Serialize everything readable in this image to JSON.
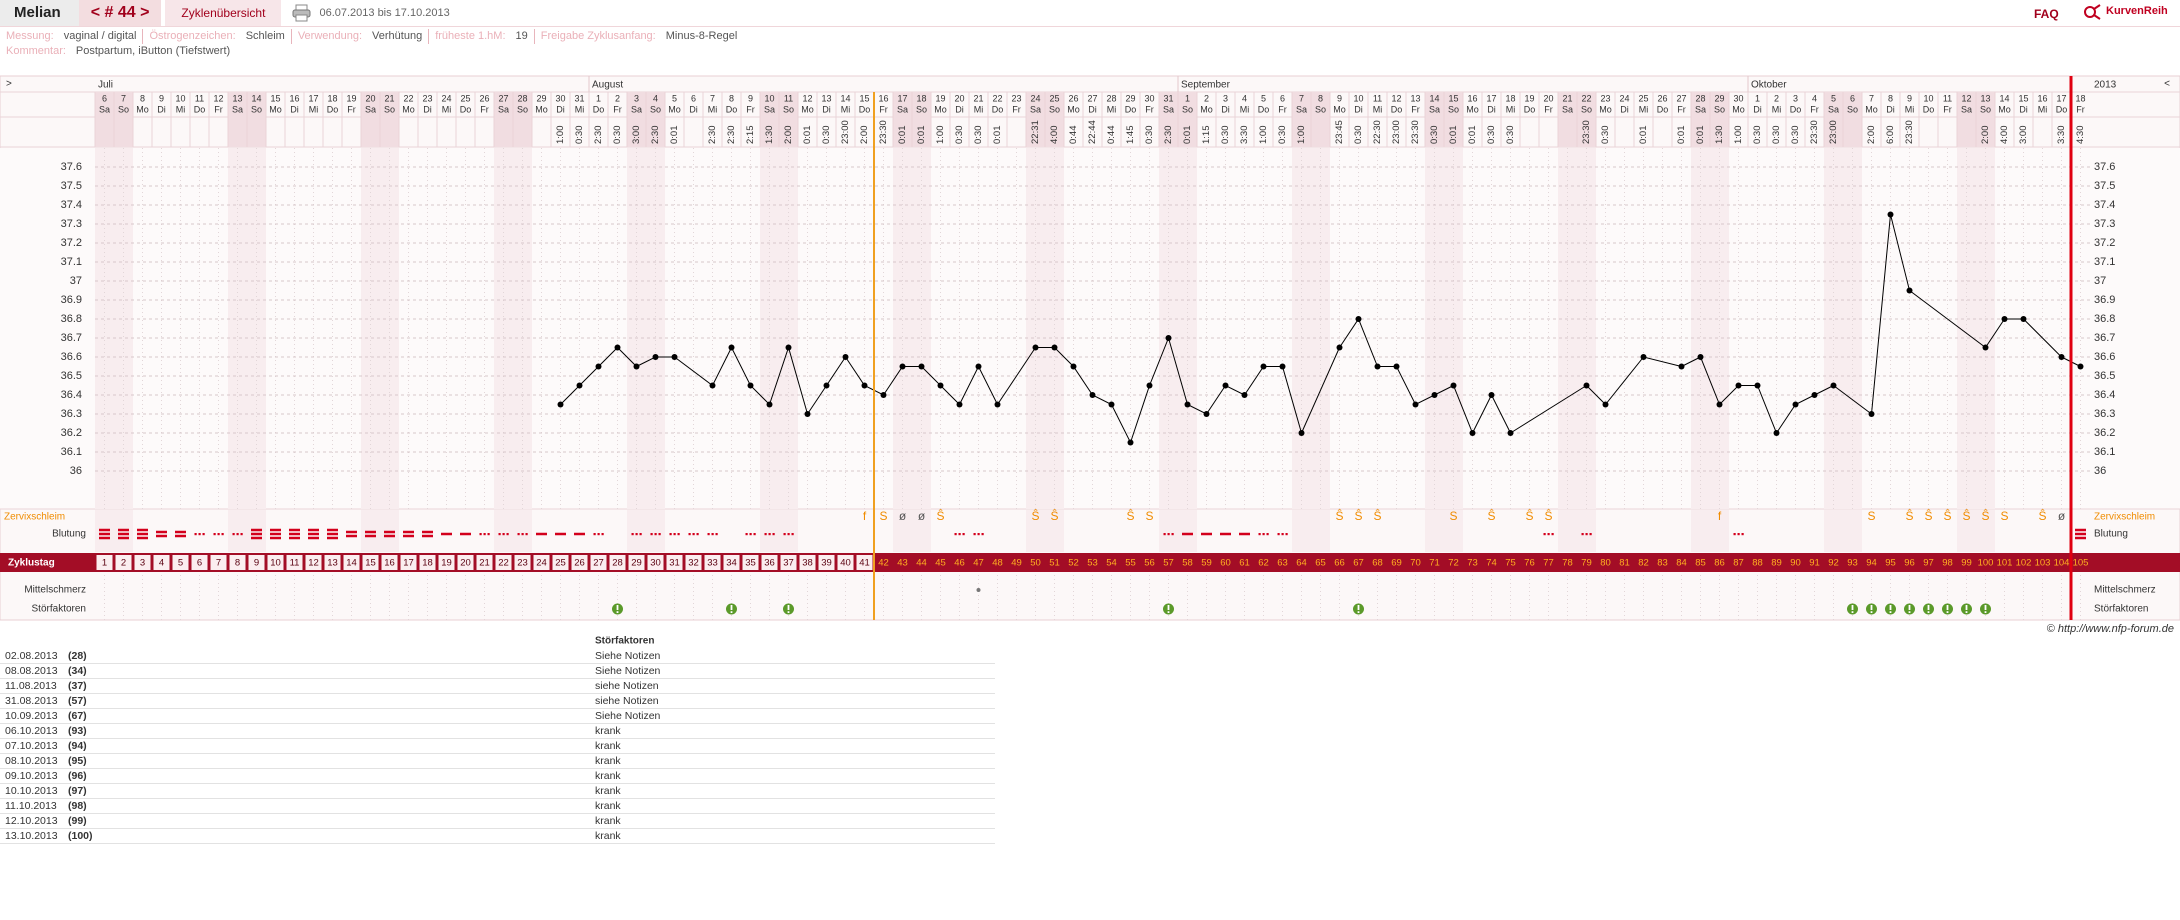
{
  "header": {
    "title": "Melian",
    "cycle_nav": "< # 44 >",
    "tab": "Zyklenübersicht",
    "date_range": "06.07.2013 bis 17.10.2013",
    "faq": "FAQ",
    "site": "KurvenReih"
  },
  "info": {
    "fields": [
      {
        "label": "Messung:",
        "value": "vaginal / digital"
      },
      {
        "label": "Östrogenzeichen:",
        "value": "Schleim"
      },
      {
        "label": "Verwendung:",
        "value": "Verhütung"
      },
      {
        "label": "früheste 1.hM:",
        "value": 19
      },
      {
        "label": "Freigabe Zyklusanfang:",
        "value": "Minus-8-Regel"
      }
    ],
    "comment_label": "Kommentar:",
    "comment": "Postpartum, iButton (Tiefstwert)"
  },
  "chart_data": {
    "type": "line",
    "nav": {
      "left": ">",
      "right": "<"
    },
    "year": "2013",
    "months": [
      "Juli",
      "August",
      "September",
      "Oktober"
    ],
    "days": [
      6,
      7,
      8,
      9,
      10,
      11,
      12,
      13,
      14,
      15,
      16,
      17,
      18,
      19,
      20,
      21,
      22,
      23,
      24,
      25,
      26,
      27,
      28,
      29,
      30,
      31,
      1,
      2,
      3,
      4,
      5,
      6,
      7,
      8,
      9,
      10,
      11,
      12,
      13,
      14,
      15,
      16,
      17,
      18,
      19,
      20,
      21,
      22,
      23,
      24,
      25,
      26,
      27,
      28,
      29,
      30,
      31,
      1,
      2,
      3,
      4,
      5,
      6,
      7,
      8,
      9,
      10,
      11,
      12,
      13,
      14,
      15,
      16,
      17,
      18,
      19,
      20,
      21,
      22,
      23,
      24,
      25,
      26,
      27,
      28,
      29,
      30,
      1,
      2,
      3,
      4,
      5,
      6,
      7,
      8,
      9,
      10,
      11,
      12,
      13,
      14,
      15,
      16,
      17,
      18
    ],
    "weekdays": [
      "Sa",
      "So",
      "Mo",
      "Di",
      "Mi",
      "Do",
      "Fr",
      "Sa",
      "So",
      "Mo",
      "Di",
      "Mi",
      "Do",
      "Fr",
      "Sa",
      "So",
      "Mo",
      "Di",
      "Mi",
      "Do",
      "Fr",
      "Sa",
      "So",
      "Mo",
      "Di",
      "Mi",
      "Do",
      "Fr",
      "Sa",
      "So",
      "Mo",
      "Di",
      "Mi",
      "Do",
      "Fr",
      "Sa",
      "So",
      "Mo",
      "Di",
      "Mi",
      "Do",
      "Fr",
      "Sa",
      "So",
      "Mo",
      "Di",
      "Mi",
      "Do",
      "Fr",
      "Sa",
      "So",
      "Mo",
      "Di",
      "Mi",
      "Do",
      "Fr",
      "Sa",
      "So",
      "Mo",
      "Di",
      "Mi",
      "Do",
      "Fr",
      "Sa",
      "So",
      "Mo",
      "Di",
      "Mi",
      "Do",
      "Fr",
      "Sa",
      "So",
      "Mo",
      "Di",
      "Mi",
      "Do",
      "Fr",
      "Sa",
      "So",
      "Mo",
      "Di",
      "Mi",
      "Do",
      "Fr",
      "Sa",
      "So",
      "Mo",
      "Di",
      "Mi",
      "Do",
      "Fr",
      "Sa",
      "So",
      "Mo",
      "Di",
      "Mi",
      "Do",
      "Fr",
      "Sa",
      "So",
      "Mo",
      "Di",
      "Mi",
      "Do",
      "Fr"
    ],
    "times": [
      null,
      null,
      null,
      null,
      null,
      null,
      null,
      null,
      null,
      null,
      null,
      null,
      null,
      null,
      null,
      null,
      null,
      null,
      null,
      null,
      null,
      null,
      null,
      null,
      "1:00",
      "0:30",
      "2:30",
      "0:30",
      "3:00",
      "2:30",
      "0:01",
      null,
      "2:30",
      "2:30",
      "2:15",
      "1:30",
      "2:00",
      "0:01",
      "0:30",
      "23:00",
      "2:00",
      "23:30",
      "0:01",
      "0:01",
      "1:00",
      "0:30",
      "0:30",
      "0:01",
      null,
      "22:31",
      "4:00",
      "0:44",
      "22:44",
      "0:44",
      "1:45",
      "0:30",
      "2:30",
      "0:01",
      "1:15",
      "0:30",
      "3:30",
      "1:00",
      "0:30",
      "1:00",
      null,
      "23:45",
      "0:30",
      "22:30",
      "23:00",
      "23:30",
      "0:30",
      "0:01",
      "0:01",
      "0:30",
      "0:30",
      null,
      null,
      null,
      "23:30",
      "0:30",
      null,
      "0:01",
      null,
      "0:01",
      "0:01",
      "1:30",
      "1:00",
      "0:30",
      "0:30",
      "0:30",
      "23:30",
      "23:00",
      null,
      "2:00",
      "6:00",
      "23:30",
      null,
      null,
      null,
      "2:00",
      "4:00",
      "3:00",
      null,
      "3:30",
      "4:30"
    ],
    "series": [
      {
        "name": "Temperatur",
        "color": "#000000",
        "values": [
          null,
          null,
          null,
          null,
          null,
          null,
          null,
          null,
          null,
          null,
          null,
          null,
          null,
          null,
          null,
          null,
          null,
          null,
          null,
          null,
          null,
          null,
          null,
          null,
          36.35,
          36.45,
          36.55,
          36.65,
          36.55,
          36.6,
          36.6,
          null,
          36.45,
          36.65,
          36.45,
          36.35,
          36.65,
          36.3,
          36.45,
          36.6,
          36.45,
          36.4,
          36.55,
          36.55,
          36.45,
          36.35,
          36.55,
          36.35,
          null,
          36.65,
          36.65,
          36.55,
          36.4,
          36.35,
          36.15,
          36.45,
          36.7,
          36.35,
          36.3,
          36.45,
          36.4,
          36.55,
          36.55,
          36.2,
          null,
          36.65,
          36.8,
          36.55,
          36.55,
          36.35,
          36.4,
          36.45,
          36.2,
          36.4,
          36.2,
          null,
          null,
          null,
          36.45,
          36.35,
          null,
          36.6,
          null,
          36.55,
          36.6,
          36.35,
          36.45,
          36.45,
          36.2,
          36.35,
          36.4,
          36.45,
          null,
          36.3,
          37.35,
          36.95,
          null,
          null,
          null,
          36.65,
          36.8,
          36.8,
          null,
          36.6,
          36.55
        ]
      }
    ],
    "ylim": [
      35.8,
      37.7
    ],
    "yticks": [
      36,
      36.1,
      36.2,
      36.3,
      36.4,
      36.5,
      36.6,
      36.7,
      36.8,
      36.9,
      37,
      37.1,
      37.2,
      37.3,
      37.4,
      37.5,
      37.6
    ],
    "grid": true,
    "row_labels": {
      "mucus": "Zervixschleim",
      "bleeding": "Blutung",
      "cycle_day": "Zyklustag",
      "pain": "Mittelschmerz",
      "disturbance": "Störfaktoren"
    },
    "mucus": [
      null,
      null,
      null,
      null,
      null,
      null,
      null,
      null,
      null,
      null,
      null,
      null,
      null,
      null,
      null,
      null,
      null,
      null,
      null,
      null,
      null,
      null,
      null,
      null,
      null,
      null,
      null,
      null,
      null,
      null,
      null,
      null,
      null,
      null,
      null,
      null,
      null,
      null,
      null,
      null,
      "f",
      "S",
      "ø",
      "ø",
      "Ŝ",
      null,
      null,
      null,
      null,
      "Ŝ",
      "Ŝ",
      null,
      null,
      null,
      "Ŝ",
      "S",
      null,
      null,
      null,
      null,
      null,
      null,
      null,
      null,
      null,
      "Ŝ",
      "Ŝ",
      "Ŝ",
      null,
      null,
      null,
      "S",
      null,
      "Ŝ",
      null,
      "Ŝ",
      "Ŝ",
      null,
      null,
      null,
      null,
      null,
      null,
      null,
      null,
      "f",
      null,
      null,
      null,
      null,
      null,
      null,
      null,
      "S",
      null,
      "Ŝ",
      "Ŝ",
      "Ŝ",
      "Ŝ",
      "Ŝ",
      "S",
      null,
      "Ŝ",
      "ø",
      null
    ],
    "bleeding": [
      4,
      4,
      4,
      3,
      3,
      1,
      1,
      1,
      4,
      4,
      4,
      4,
      4,
      3,
      3,
      3,
      3,
      3,
      2,
      2,
      1,
      1,
      1,
      2,
      2,
      2,
      1,
      null,
      1,
      1,
      1,
      1,
      1,
      null,
      1,
      1,
      1,
      null,
      null,
      null,
      null,
      null,
      null,
      null,
      null,
      1,
      1,
      null,
      null,
      null,
      null,
      null,
      null,
      null,
      null,
      null,
      1,
      2,
      2,
      2,
      2,
      1,
      1,
      null,
      null,
      null,
      null,
      null,
      null,
      null,
      null,
      null,
      null,
      null,
      null,
      null,
      1,
      null,
      1,
      null,
      null,
      null,
      null,
      null,
      null,
      null,
      1,
      null,
      null,
      null,
      null,
      null,
      null,
      null,
      null,
      null,
      null,
      null,
      null,
      null,
      null,
      null,
      null,
      null,
      4
    ],
    "cycle_days": [
      1,
      2,
      3,
      4,
      5,
      6,
      7,
      8,
      9,
      10,
      11,
      12,
      13,
      14,
      15,
      16,
      17,
      18,
      19,
      20,
      21,
      22,
      23,
      24,
      25,
      26,
      27,
      28,
      29,
      30,
      31,
      32,
      33,
      34,
      35,
      36,
      37,
      38,
      39,
      40,
      41,
      42,
      43,
      44,
      45,
      46,
      47,
      48,
      49,
      50,
      51,
      52,
      53,
      54,
      55,
      56,
      57,
      58,
      59,
      60,
      61,
      62,
      63,
      64,
      65,
      66,
      67,
      68,
      69,
      70,
      71,
      72,
      73,
      74,
      75,
      76,
      77,
      78,
      79,
      80,
      81,
      82,
      83,
      84,
      85,
      86,
      87,
      88,
      89,
      90,
      91,
      92,
      93,
      94,
      95,
      96,
      97,
      98,
      99,
      100,
      101,
      102,
      103,
      104,
      105
    ],
    "pain_days": [
      47
    ],
    "disturbance_days": [
      28,
      34,
      37,
      57,
      67,
      93,
      94,
      95,
      96,
      97,
      98,
      99,
      100
    ],
    "ovulation_day": 41,
    "cycle_end_day": 104,
    "copyright": "© http://www.nfp-forum.de"
  },
  "table": {
    "header": "Störfaktoren",
    "rows": [
      [
        "02.08.2013",
        "(28)",
        "Siehe Notizen"
      ],
      [
        "08.08.2013",
        "(34)",
        "Siehe Notizen"
      ],
      [
        "11.08.2013",
        "(37)",
        "siehe Notizen"
      ],
      [
        "31.08.2013",
        "(57)",
        "siehe Notizen"
      ],
      [
        "10.09.2013",
        "(67)",
        "Siehe Notizen"
      ],
      [
        "06.10.2013",
        "(93)",
        "krank"
      ],
      [
        "07.10.2013",
        "(94)",
        "krank"
      ],
      [
        "08.10.2013",
        "(95)",
        "krank"
      ],
      [
        "09.10.2013",
        "(96)",
        "krank"
      ],
      [
        "10.10.2013",
        "(97)",
        "krank"
      ],
      [
        "11.10.2013",
        "(98)",
        "krank"
      ],
      [
        "12.10.2013",
        "(99)",
        "krank"
      ],
      [
        "13.10.2013",
        "(100)",
        "krank"
      ]
    ]
  }
}
